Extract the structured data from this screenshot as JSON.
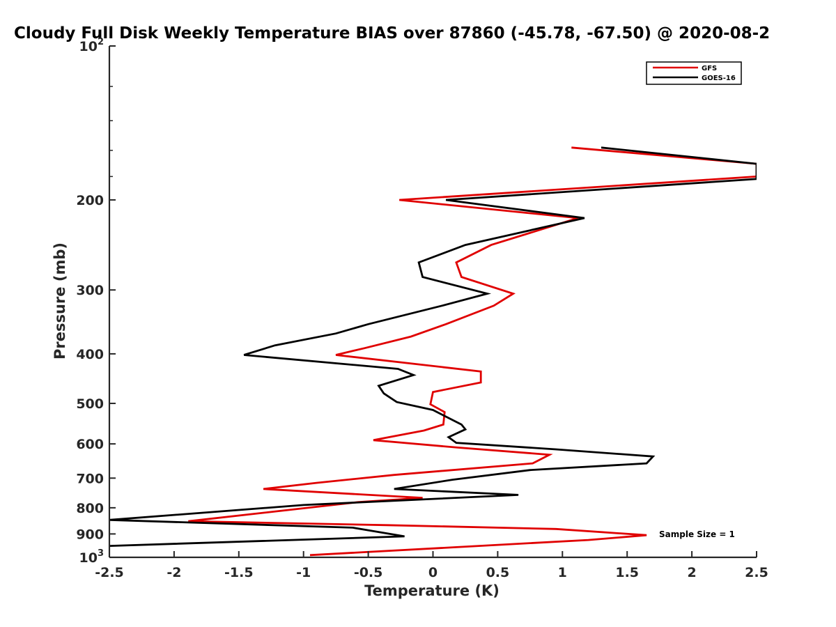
{
  "chart_data": {
    "type": "line",
    "title": "Cloudy Full Disk Weekly Temperature BIAS over 87860 (-45.78, -67.50) @ 2020-08-2",
    "xlabel": "Temperature (K)",
    "ylabel": "Pressure (mb)",
    "xlim": [
      -2.5,
      2.5
    ],
    "ylim": [
      100,
      1000
    ],
    "y_scale": "log",
    "y_reversed": true,
    "grid": false,
    "legend_position": "top-right",
    "x_ticks": [
      "-2.5",
      "-2",
      "-1.5",
      "-1",
      "-0.5",
      "0",
      "0.5",
      "1",
      "1.5",
      "2",
      "2.5"
    ],
    "y_tick_labels": [
      {
        "value": 100,
        "base": "10",
        "exp": "2"
      },
      {
        "value": 200,
        "base": "200",
        "exp": ""
      },
      {
        "value": 300,
        "base": "300",
        "exp": ""
      },
      {
        "value": 400,
        "base": "400",
        "exp": ""
      },
      {
        "value": 500,
        "base": "500",
        "exp": ""
      },
      {
        "value": 600,
        "base": "600",
        "exp": ""
      },
      {
        "value": 700,
        "base": "700",
        "exp": ""
      },
      {
        "value": 800,
        "base": "800",
        "exp": ""
      },
      {
        "value": 900,
        "base": "900",
        "exp": ""
      },
      {
        "value": 1000,
        "base": "10",
        "exp": "3"
      }
    ],
    "annotation": "Sample Size = 1",
    "series": [
      {
        "name": "GFS",
        "color": "#e00000",
        "points": [
          [
            1.07,
            158
          ],
          [
            2.5,
            170
          ],
          [
            2.5,
            180
          ],
          [
            -0.26,
            200
          ],
          [
            1.12,
            217
          ],
          [
            0.45,
            245
          ],
          [
            0.18,
            265
          ],
          [
            0.22,
            283
          ],
          [
            0.62,
            305
          ],
          [
            0.47,
            322
          ],
          [
            0.1,
            350
          ],
          [
            -0.17,
            370
          ],
          [
            -0.53,
            390
          ],
          [
            -0.75,
            402
          ],
          [
            0.37,
            433
          ],
          [
            0.37,
            455
          ],
          [
            0.0,
            475
          ],
          [
            -0.02,
            502
          ],
          [
            0.09,
            520
          ],
          [
            0.08,
            550
          ],
          [
            -0.07,
            565
          ],
          [
            -0.46,
            590
          ],
          [
            0.19,
            610
          ],
          [
            0.9,
            630
          ],
          [
            0.77,
            655
          ],
          [
            -0.3,
            690
          ],
          [
            -0.9,
            715
          ],
          [
            -1.31,
            735
          ],
          [
            -0.08,
            765
          ],
          [
            -0.58,
            780
          ],
          [
            -1.89,
            850
          ],
          [
            -0.35,
            865
          ],
          [
            0.95,
            880
          ],
          [
            1.65,
            905
          ],
          [
            1.2,
            925
          ],
          [
            -0.95,
            990
          ]
        ]
      },
      {
        "name": "GOES-16",
        "color": "#000000",
        "points": [
          [
            1.3,
            158
          ],
          [
            2.5,
            170
          ],
          [
            2.5,
            182
          ],
          [
            0.1,
            200
          ],
          [
            1.17,
            217
          ],
          [
            0.25,
            245
          ],
          [
            -0.11,
            265
          ],
          [
            -0.08,
            283
          ],
          [
            0.42,
            305
          ],
          [
            0.07,
            322
          ],
          [
            -0.5,
            350
          ],
          [
            -0.75,
            365
          ],
          [
            -1.22,
            385
          ],
          [
            -1.46,
            402
          ],
          [
            -0.27,
            428
          ],
          [
            -0.15,
            440
          ],
          [
            -0.42,
            462
          ],
          [
            -0.38,
            478
          ],
          [
            -0.28,
            497
          ],
          [
            0.0,
            515
          ],
          [
            0.22,
            550
          ],
          [
            0.25,
            562
          ],
          [
            0.12,
            582
          ],
          [
            0.18,
            597
          ],
          [
            0.95,
            615
          ],
          [
            1.7,
            635
          ],
          [
            1.65,
            655
          ],
          [
            0.75,
            675
          ],
          [
            0.15,
            705
          ],
          [
            -0.3,
            735
          ],
          [
            0.66,
            755
          ],
          [
            -1.0,
            790
          ],
          [
            -2.5,
            845
          ],
          [
            -0.62,
            875
          ],
          [
            -0.22,
            910
          ],
          [
            -2.5,
            950
          ]
        ]
      }
    ]
  }
}
